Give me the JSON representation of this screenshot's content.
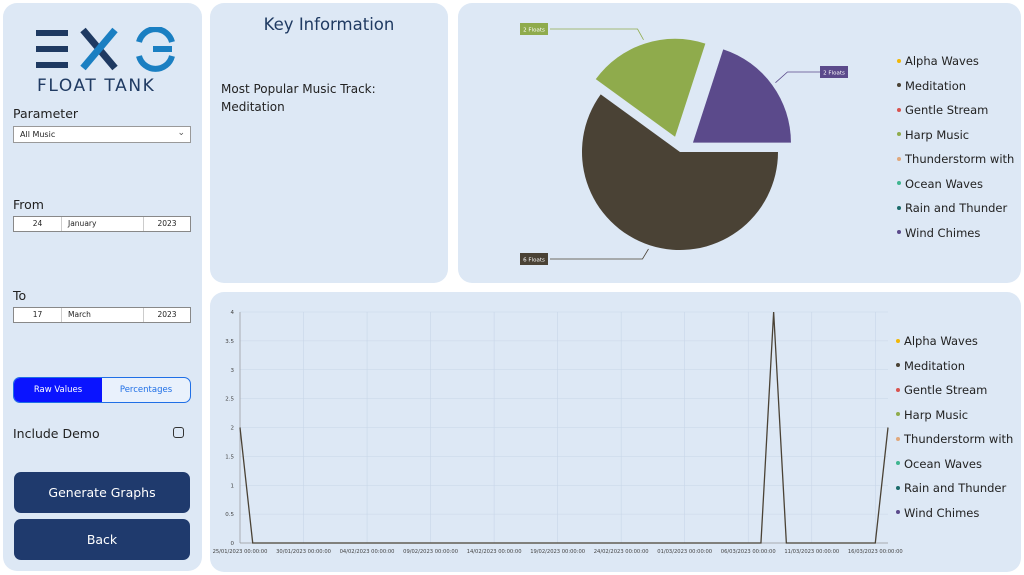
{
  "logo": {
    "word": "FLOAT TANK",
    "mark": "EXO"
  },
  "sidebar": {
    "parameter_label": "Parameter",
    "parameter_value": "All Music",
    "from_label": "From",
    "from": {
      "day": "24",
      "month": "January",
      "year": "2023"
    },
    "to_label": "To",
    "to": {
      "day": "17",
      "month": "March",
      "year": "2023"
    },
    "toggle": {
      "raw": "Raw Values",
      "pct": "Percentages"
    },
    "include_demo_label": "Include Demo",
    "include_demo_checked": false,
    "generate_label": "Generate Graphs",
    "back_label": "Back"
  },
  "key": {
    "title": "Key Information",
    "line1": "Most Popular Music Track:",
    "line2": "Meditation"
  },
  "legend": [
    {
      "name": "Alpha Waves",
      "color": "#f2b705"
    },
    {
      "name": "Meditation",
      "color": "#4a4235"
    },
    {
      "name": "Gentle Stream",
      "color": "#d9534f"
    },
    {
      "name": "Harp Music",
      "color": "#8fab4c"
    },
    {
      "name": "Thunderstorm with",
      "color": "#e0a87c"
    },
    {
      "name": "Ocean Waves",
      "color": "#3fb58f"
    },
    {
      "name": "Rain and Thunder",
      "color": "#1b6b6b"
    },
    {
      "name": "Wind Chimes",
      "color": "#5b4a8b"
    }
  ],
  "chart_data": [
    {
      "type": "pie",
      "slices": [
        {
          "name": "Meditation",
          "value": 6,
          "label": "6 Floats",
          "color": "#4a4235"
        },
        {
          "name": "Harp Music",
          "value": 2,
          "label": "2 Floats",
          "color": "#8fab4c"
        },
        {
          "name": "Wind Chimes",
          "value": 2,
          "label": "2 Floats",
          "color": "#5b4a8b"
        }
      ]
    },
    {
      "type": "line",
      "x": [
        "25/01/2023 00:00:00",
        "30/01/2023 00:00:00",
        "04/02/2023 00:00:00",
        "09/02/2023 00:00:00",
        "14/02/2023 00:00:00",
        "19/02/2023 00:00:00",
        "24/02/2023 00:00:00",
        "01/03/2023 00:00:00",
        "06/03/2023 00:00:00",
        "11/03/2023 00:00:00",
        "16/03/2023 00:00:00"
      ],
      "y_ticks": [
        "0",
        "0.5",
        "1",
        "1.5",
        "2",
        "2.5",
        "3",
        "3.5",
        "4"
      ],
      "ylim": [
        0,
        4
      ],
      "grid": true,
      "series": [
        {
          "name": "Meditation",
          "color": "#4a4235",
          "points": [
            [
              "25/01/2023",
              2
            ],
            [
              "26/01/2023",
              0
            ],
            [
              "07/03/2023",
              0
            ],
            [
              "08/03/2023",
              4
            ],
            [
              "09/03/2023",
              0
            ],
            [
              "16/03/2023",
              0
            ],
            [
              "17/03/2023",
              2
            ]
          ]
        }
      ]
    }
  ]
}
